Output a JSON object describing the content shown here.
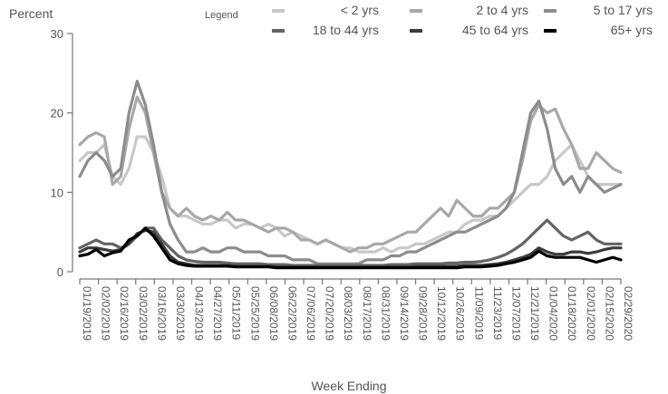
{
  "chart_data": {
    "type": "line",
    "ylabel": "Percent",
    "xlabel": "Week Ending",
    "ylim": [
      0,
      30
    ],
    "yticks": [
      0,
      10,
      20,
      30
    ],
    "grid": false,
    "legend_title": "Legend",
    "legend_position": "top",
    "x_tick_labels": [
      "01/19/2019",
      "02/02/2019",
      "02/16/2019",
      "03/02/2019",
      "03/16/2019",
      "03/30/2019",
      "04/13/2019",
      "04/27/2019",
      "05/11/2019",
      "05/25/2019",
      "06/08/2019",
      "06/22/2019",
      "07/06/2019",
      "07/20/2019",
      "08/03/2019",
      "08/17/2019",
      "08/31/2019",
      "09/14/2019",
      "09/28/2019",
      "10/12/2019",
      "10/26/2019",
      "11/09/2019",
      "11/23/2019",
      "12/07/2019",
      "12/21/2019",
      "01/04/2020",
      "01/18/2020",
      "02/01/2020",
      "02/15/2020",
      "02/29/2020"
    ],
    "x_week_start": "01/19/2019",
    "x_week_end": "02/29/2020",
    "series": [
      {
        "name": "< 2 yrs",
        "color": "#c8c8c8",
        "values": [
          14,
          15,
          15,
          16,
          12,
          11,
          13,
          17,
          17,
          15,
          12,
          8,
          7,
          7,
          6.5,
          6,
          6,
          6.5,
          6.5,
          5.5,
          6,
          6,
          5.5,
          6,
          5.5,
          4.5,
          5,
          4.5,
          4,
          3.5,
          4,
          3.5,
          3,
          3,
          2.5,
          2.5,
          2.5,
          3,
          2.5,
          3,
          3,
          3.5,
          3.5,
          4,
          4.5,
          5,
          5,
          6,
          6.5,
          6.5,
          7,
          7,
          8,
          9,
          10,
          11,
          11,
          12,
          14,
          15,
          16,
          14,
          12,
          11,
          11,
          11,
          11
        ]
      },
      {
        "name": "2 to 4 yrs",
        "color": "#a8a8a8",
        "values": [
          16,
          17,
          17.5,
          17,
          11,
          12,
          18,
          22,
          20,
          15,
          10,
          8,
          7,
          8,
          7,
          6.5,
          7,
          6.5,
          7.5,
          6.5,
          6.5,
          6,
          5.5,
          5,
          5.5,
          5.5,
          5,
          4,
          4,
          3.5,
          4,
          3.5,
          3,
          2.5,
          3,
          3,
          3.5,
          3.5,
          4,
          4.5,
          5,
          5,
          6,
          7,
          8,
          7,
          9,
          8,
          7,
          7,
          8,
          8,
          9,
          10,
          14,
          19,
          21,
          20,
          20.5,
          18,
          16,
          13,
          13,
          15,
          14,
          13,
          12.5
        ]
      },
      {
        "name": "5 to 17 yrs",
        "color": "#8c8c8c",
        "values": [
          12,
          14,
          15,
          14,
          12,
          13,
          20,
          24,
          21,
          16,
          10,
          6,
          4,
          2.5,
          2.5,
          3,
          2.5,
          2.5,
          3,
          3,
          2.5,
          2.5,
          2.5,
          2,
          2,
          2,
          1.5,
          1.5,
          1.5,
          1,
          1,
          1,
          1,
          1,
          1,
          1.5,
          1.5,
          1.5,
          2,
          2,
          2.5,
          2.5,
          3,
          3.5,
          4,
          4.5,
          5,
          5,
          5.5,
          6,
          6.5,
          7,
          8,
          10,
          15,
          20,
          21.5,
          18,
          13,
          11,
          12,
          10,
          12,
          11,
          10,
          10.5,
          11
        ]
      },
      {
        "name": "18 to 44 yrs",
        "color": "#646464",
        "values": [
          3,
          3.5,
          4,
          3.5,
          3.5,
          3,
          3.5,
          4.5,
          5.5,
          5.5,
          4,
          3,
          2,
          1.5,
          1.3,
          1.2,
          1.2,
          1.2,
          1.1,
          1,
          1,
          1,
          1,
          0.9,
          0.9,
          0.9,
          0.8,
          0.8,
          0.8,
          0.8,
          0.8,
          0.8,
          0.8,
          0.8,
          0.8,
          0.8,
          0.8,
          0.8,
          0.9,
          0.9,
          0.9,
          1,
          1,
          1,
          1,
          1.1,
          1.1,
          1.2,
          1.2,
          1.3,
          1.5,
          1.8,
          2.2,
          2.8,
          3.5,
          4.5,
          5.5,
          6.5,
          5.5,
          4.5,
          4,
          4.5,
          5,
          4,
          3.5,
          3.5,
          3.5
        ]
      },
      {
        "name": "45 to 64 yrs",
        "color": "#3c3c3c",
        "values": [
          2.5,
          3,
          3,
          2.8,
          2.6,
          2.8,
          3.5,
          4.8,
          5.2,
          5,
          3.5,
          2,
          1.2,
          1,
          0.8,
          0.8,
          0.8,
          0.8,
          0.8,
          0.7,
          0.7,
          0.7,
          0.7,
          0.7,
          0.6,
          0.6,
          0.6,
          0.6,
          0.6,
          0.6,
          0.6,
          0.6,
          0.6,
          0.6,
          0.6,
          0.6,
          0.6,
          0.6,
          0.6,
          0.6,
          0.6,
          0.7,
          0.7,
          0.7,
          0.7,
          0.7,
          0.7,
          0.8,
          0.8,
          0.8,
          0.9,
          1,
          1.2,
          1.5,
          1.8,
          2.2,
          3,
          2.5,
          2.2,
          2.2,
          2.5,
          2.5,
          2.3,
          2.5,
          2.8,
          3,
          3
        ]
      },
      {
        "name": "65+ yrs",
        "color": "#000000",
        "values": [
          2,
          2.2,
          2.8,
          2,
          2.4,
          2.6,
          4,
          4.5,
          5.5,
          4.5,
          3,
          1.5,
          1,
          0.8,
          0.7,
          0.7,
          0.7,
          0.7,
          0.7,
          0.6,
          0.6,
          0.6,
          0.6,
          0.6,
          0.5,
          0.5,
          0.5,
          0.5,
          0.5,
          0.5,
          0.5,
          0.5,
          0.5,
          0.5,
          0.5,
          0.5,
          0.5,
          0.5,
          0.5,
          0.5,
          0.5,
          0.5,
          0.5,
          0.5,
          0.5,
          0.5,
          0.5,
          0.6,
          0.6,
          0.6,
          0.7,
          0.8,
          1,
          1.2,
          1.5,
          1.8,
          2.6,
          2,
          1.8,
          1.8,
          1.8,
          1.8,
          1.5,
          1.2,
          1.5,
          1.8,
          1.5
        ]
      }
    ]
  }
}
